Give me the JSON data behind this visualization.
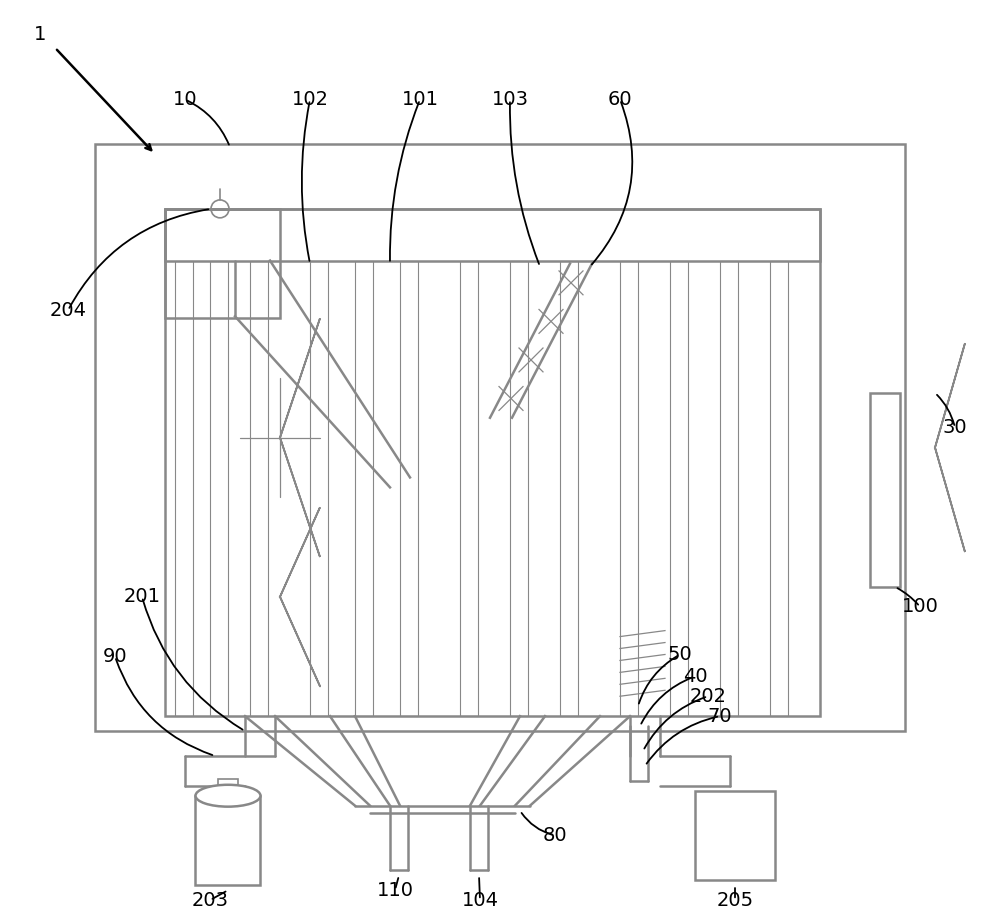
{
  "bg_color": "#ffffff",
  "gc": "#888888",
  "bk": "#000000",
  "fig_width": 10.0,
  "fig_height": 9.11,
  "dpi": 100
}
